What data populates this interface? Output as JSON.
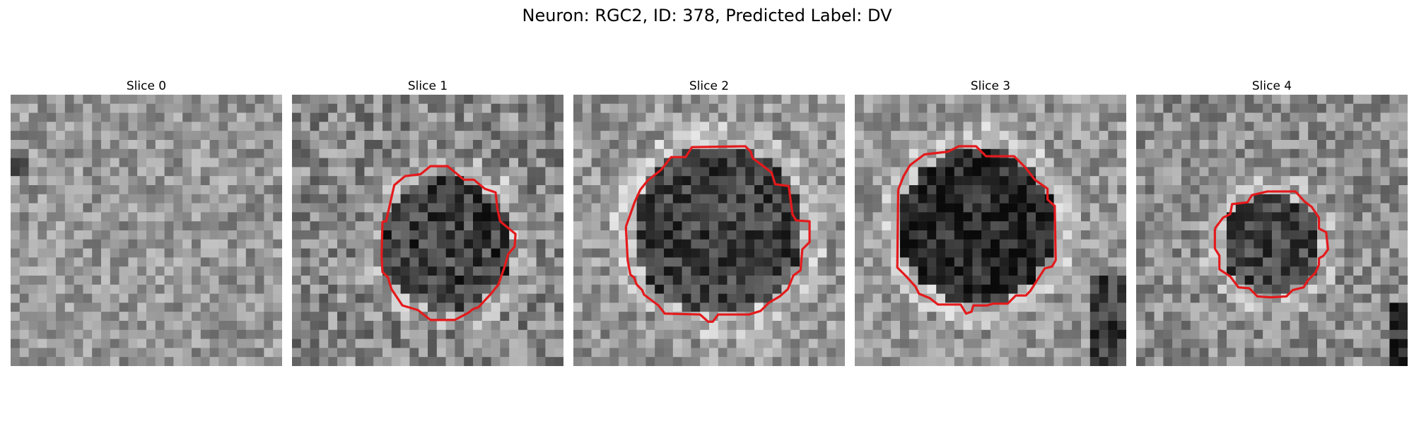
{
  "figure": {
    "title": "Neuron: RGC2, ID: 378, Predicted Label: DV"
  },
  "panels": [
    {
      "title": "Slice 0",
      "contour": false
    },
    {
      "title": "Slice 1",
      "contour": true
    },
    {
      "title": "Slice 2",
      "contour": true
    },
    {
      "title": "Slice 3",
      "contour": true
    },
    {
      "title": "Slice 4",
      "contour": true
    }
  ],
  "colors": {
    "contour": "#e41a1c"
  }
}
